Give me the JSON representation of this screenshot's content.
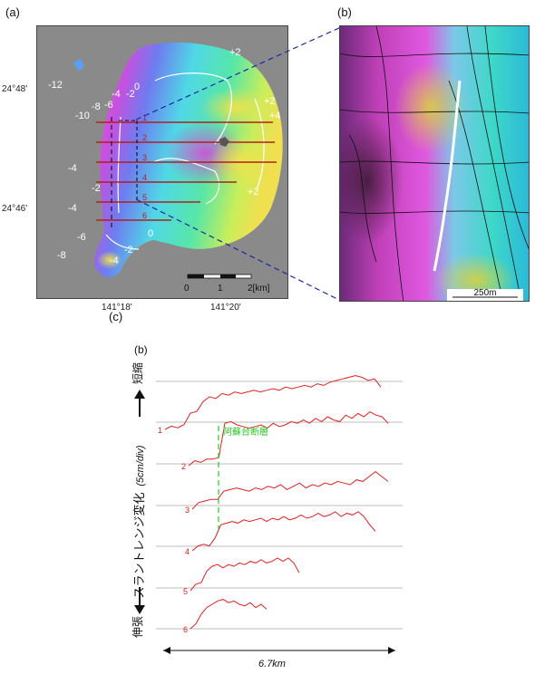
{
  "panel_labels": {
    "a": "(a)",
    "b": "(b)",
    "c": "(c)",
    "c_inner": "(b)"
  },
  "map_a": {
    "lat_labels": [
      "24°48'",
      "24°46'"
    ],
    "lon_labels": [
      "141°18'",
      "141°20'"
    ],
    "contour_labels": [
      "+2",
      "-12",
      "0",
      "-4",
      "-2",
      "-10",
      "-8",
      "-6",
      "+2",
      "+4",
      "-4",
      "-4",
      "+2",
      "-6",
      "-8",
      "-4",
      "-2",
      "0",
      "-2"
    ],
    "profile_numbers": [
      "1",
      "2",
      "3",
      "4",
      "5",
      "6"
    ],
    "scalebar": {
      "ticks": [
        "0",
        "1",
        "2[km]"
      ]
    }
  },
  "map_b": {
    "scalebar_label": "250m"
  },
  "chart_c": {
    "ylabel_top": "短縮",
    "ylabel_middle": "スラントレンジ変化",
    "ylabel_unit": "(5cm/div)",
    "ylabel_bottom": "伸張",
    "fault_label": "阿蘇台断層",
    "xspan_label": "6.7km"
  },
  "chart_data": {
    "type": "line",
    "x": "distance along profile",
    "series": [
      {
        "name": "1",
        "values": [
          0,
          0.2,
          0.1,
          0.3,
          1.0,
          1.1,
          1.7,
          2.0,
          1.9,
          2.2,
          2.1,
          2.3,
          2.2,
          2.3,
          2.4,
          2.3,
          2.4,
          2.5,
          2.4,
          2.6,
          2.5,
          2.6,
          2.7,
          2.6,
          2.8,
          2.7,
          2.9,
          3.0,
          3.1,
          3.2,
          3.3,
          3.2,
          3.0,
          3.1,
          2.6
        ]
      },
      {
        "name": "2",
        "values": [
          0,
          0.3,
          0.2,
          0.4,
          0.4,
          0.5,
          2.6,
          2.7,
          2.5,
          2.4,
          2.3,
          2.4,
          2.5,
          2.3,
          2.6,
          2.4,
          2.5,
          2.7,
          2.6,
          2.8,
          2.6,
          2.9,
          2.7,
          3.0,
          2.8,
          2.7,
          3.1,
          2.9,
          3.2,
          3.0,
          3.3,
          3.1,
          3.0,
          2.6
        ]
      },
      {
        "name": "3",
        "values": [
          0,
          0.4,
          0.5,
          0.6,
          0.6,
          1.1,
          1.2,
          1.3,
          1.2,
          1.1,
          1.3,
          1.2,
          1.4,
          1.3,
          1.5,
          1.2,
          1.4,
          1.6,
          1.3,
          1.5,
          1.4,
          1.6,
          1.5,
          1.7,
          1.6,
          1.5,
          1.8,
          1.7,
          2.0,
          2.3,
          2.0,
          1.7
        ]
      },
      {
        "name": "4",
        "values": [
          0,
          0.3,
          0.4,
          0.3,
          0.8,
          1.6,
          1.7,
          1.8,
          1.7,
          1.9,
          1.8,
          1.9,
          2.0,
          1.8,
          2.0,
          1.9,
          2.1,
          1.9,
          2.0,
          2.2,
          2.0,
          2.1,
          2.3,
          2.1,
          2.2,
          2.4,
          2.1,
          2.3,
          2.2,
          2.4,
          2.1,
          1.6,
          1.2
        ]
      },
      {
        "name": "5",
        "values": [
          0,
          0.4,
          0.5,
          1.2,
          1.5,
          1.6,
          1.4,
          1.6,
          1.5,
          1.7,
          1.6,
          1.8,
          1.7,
          1.9,
          1.7,
          1.8,
          2.0,
          1.8,
          2.0,
          1.7,
          1.1
        ]
      },
      {
        "name": "6",
        "values": [
          0,
          0.3,
          0.9,
          1.3,
          1.5,
          1.7,
          1.8,
          1.6,
          1.7,
          1.5,
          1.4,
          1.6,
          1.3,
          1.5,
          1.2
        ]
      }
    ]
  }
}
